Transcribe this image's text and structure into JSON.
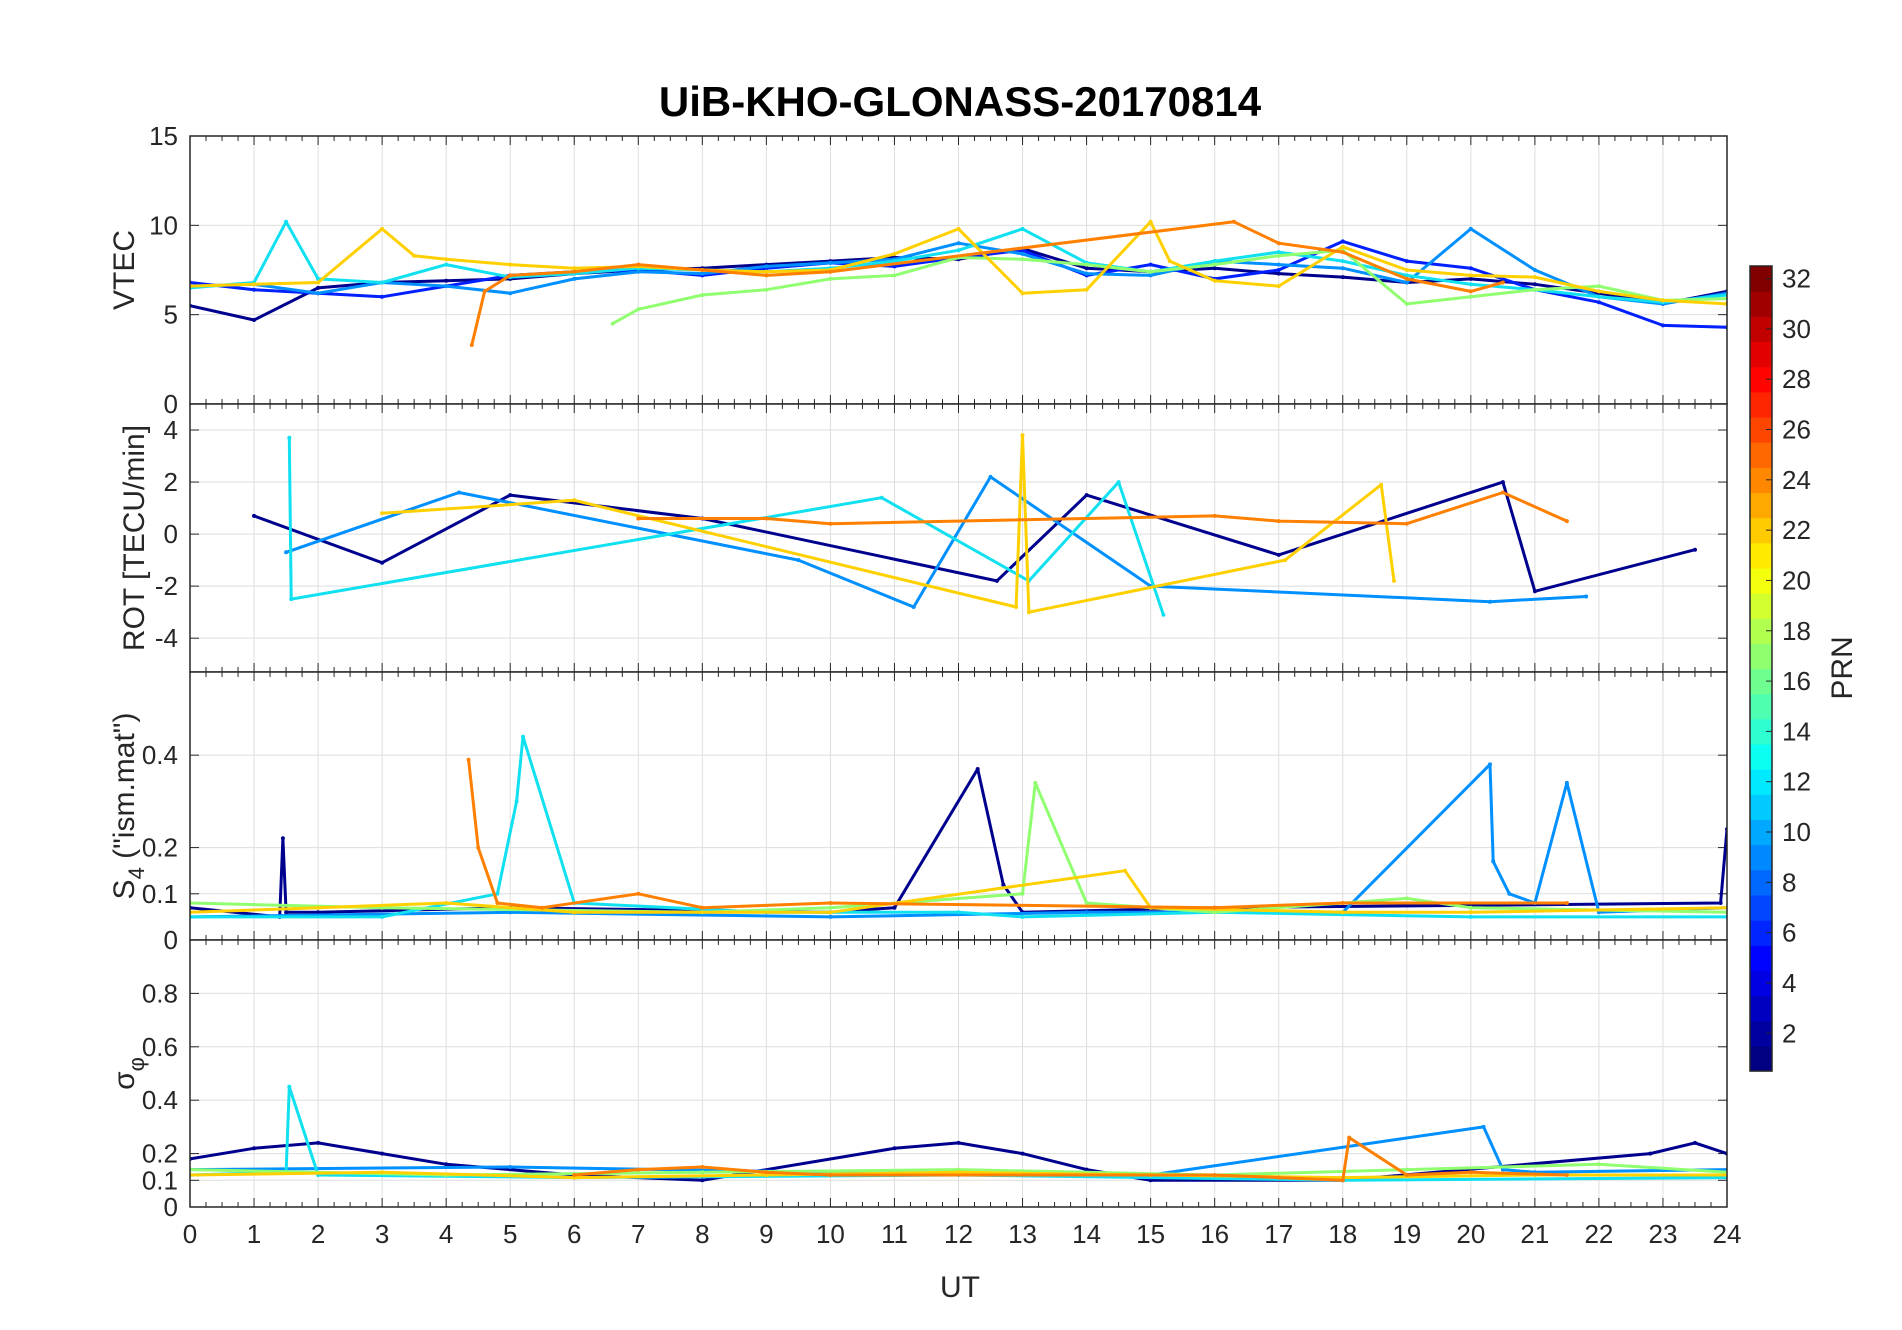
{
  "chart_data": {
    "type": "line",
    "title": "UiB-KHO-GLONASS-20170814",
    "xlabel": "UT",
    "xlim": [
      0,
      24
    ],
    "xticks": [
      "0",
      "1",
      "2",
      "3",
      "4",
      "5",
      "6",
      "7",
      "8",
      "9",
      "10",
      "11",
      "12",
      "13",
      "14",
      "15",
      "16",
      "17",
      "18",
      "19",
      "20",
      "21",
      "22",
      "23",
      "24"
    ],
    "grid": true,
    "panels": [
      {
        "ylabel": "VTEC",
        "ylim": [
          0,
          15
        ],
        "yticks": [
          "0",
          "5",
          "10",
          "15"
        ],
        "series": [
          {
            "color": "#00008f",
            "x": [
              0,
              1,
              2,
              3,
              4,
              5,
              6,
              7,
              8,
              9,
              10,
              11,
              12,
              13,
              14,
              15,
              16,
              17,
              18,
              19,
              20,
              21,
              22,
              23,
              24
            ],
            "y": [
              5.5,
              4.7,
              6.5,
              6.8,
              6.9,
              7.0,
              7.3,
              7.5,
              7.6,
              7.8,
              8.0,
              8.2,
              8.1,
              8.7,
              7.6,
              7.4,
              7.6,
              7.3,
              7.1,
              6.8,
              7.0,
              6.7,
              6.2,
              5.6,
              6.3
            ]
          },
          {
            "color": "#0020ff",
            "x": [
              0,
              1,
              2,
              3,
              4,
              5,
              6,
              7,
              8,
              9,
              10,
              11,
              12,
              13,
              14,
              15,
              16,
              17,
              18,
              19,
              20,
              21,
              22,
              23,
              24
            ],
            "y": [
              6.8,
              6.4,
              6.2,
              6.0,
              6.6,
              7.2,
              7.4,
              7.5,
              7.2,
              7.6,
              7.9,
              7.7,
              8.2,
              8.6,
              7.2,
              7.8,
              7.0,
              7.5,
              9.1,
              8.0,
              7.6,
              6.4,
              5.7,
              4.4,
              4.3
            ]
          },
          {
            "color": "#0090ff",
            "x": [
              0,
              1,
              2,
              3,
              4,
              5,
              6,
              7,
              8,
              9,
              10,
              11,
              12,
              13,
              14,
              15,
              16,
              17,
              18,
              19,
              20,
              21,
              22,
              23,
              24
            ],
            "y": [
              6.6,
              6.7,
              6.2,
              6.8,
              6.6,
              6.2,
              7.0,
              7.4,
              7.3,
              7.7,
              7.9,
              8.1,
              9.0,
              8.4,
              7.3,
              7.2,
              8.0,
              7.8,
              7.6,
              6.8,
              9.8,
              7.5,
              6.0,
              5.6,
              6.2
            ]
          },
          {
            "color": "#10e0f0",
            "x": [
              0,
              1,
              1.5,
              2,
              3,
              4,
              5,
              6,
              7,
              8,
              9,
              10,
              11,
              12,
              13,
              14,
              15,
              16,
              17,
              18,
              19,
              20,
              21,
              22,
              23,
              24
            ],
            "y": [
              6.5,
              6.8,
              10.2,
              7.0,
              6.8,
              7.8,
              7.1,
              7.3,
              7.6,
              7.5,
              7.4,
              7.6,
              8.0,
              8.6,
              9.8,
              7.9,
              7.4,
              8.0,
              8.5,
              8.0,
              7.2,
              6.7,
              6.4,
              6.0,
              5.7,
              6.1
            ]
          },
          {
            "color": "#90ff70",
            "x": [
              6.6,
              7,
              8,
              9,
              10,
              11,
              12,
              13,
              14,
              15,
              16,
              17,
              18,
              19,
              20,
              21,
              22,
              23,
              24
            ],
            "y": [
              4.5,
              5.3,
              6.1,
              6.4,
              7.0,
              7.2,
              8.2,
              8.1,
              7.8,
              7.4,
              7.8,
              8.3,
              8.6,
              5.6,
              6.0,
              6.4,
              6.6,
              5.8,
              5.9
            ]
          },
          {
            "color": "#ffd000",
            "x": [
              0,
              1,
              2,
              3,
              3.5,
              4,
              5,
              6,
              7,
              8,
              9,
              10,
              11,
              12,
              13,
              14,
              15,
              15.3,
              16,
              17,
              18,
              19,
              20,
              21,
              22,
              23,
              24
            ],
            "y": [
              6.6,
              6.7,
              6.8,
              9.8,
              8.3,
              8.1,
              7.8,
              7.6,
              7.7,
              7.5,
              7.4,
              7.5,
              8.4,
              9.8,
              6.2,
              6.4,
              10.2,
              8.0,
              6.9,
              6.6,
              8.8,
              7.5,
              7.2,
              7.1,
              6.3,
              5.8,
              5.6
            ]
          },
          {
            "color": "#ff8000",
            "x": [
              4.4,
              4.6,
              5,
              6,
              7,
              8,
              9,
              10,
              16.3,
              17,
              18,
              19,
              20,
              20.5
            ],
            "y": [
              3.3,
              6.3,
              7.2,
              7.4,
              7.8,
              7.5,
              7.2,
              7.4,
              10.2,
              9.0,
              8.5,
              7.0,
              6.3,
              6.8
            ]
          }
        ]
      },
      {
        "ylabel": "ROT [TECU/min]",
        "ylim": [
          -5.3,
          5
        ],
        "yticks": [
          "-4",
          "-2",
          "0",
          "2",
          "4"
        ],
        "series": [
          {
            "color": "#00008f",
            "x": [
              1,
              3,
              5,
              8,
              12.6,
              14,
              17,
              20.5,
              21,
              23.5
            ],
            "y": [
              0.7,
              -1.1,
              1.5,
              0.6,
              -1.8,
              1.5,
              -0.8,
              2.0,
              -2.2,
              -0.6
            ]
          },
          {
            "color": "#0090ff",
            "x": [
              1.5,
              4.2,
              9.5,
              11.3,
              12.5,
              15,
              20.3,
              21.8
            ],
            "y": [
              -0.7,
              1.6,
              -1.0,
              -2.8,
              2.2,
              -2.0,
              -2.6,
              -2.4
            ]
          },
          {
            "color": "#10e0f0",
            "x": [
              1.55,
              1.58,
              10.8,
              13.1,
              14.5,
              15.2
            ],
            "y": [
              3.7,
              -2.5,
              1.4,
              -1.8,
              2.0,
              -3.1
            ]
          },
          {
            "color": "#ffd000",
            "x": [
              3,
              6,
              12.9,
              13,
              13.1,
              17.1,
              18.6,
              18.8
            ],
            "y": [
              0.8,
              1.3,
              -2.8,
              3.8,
              -3.0,
              -1.0,
              1.9,
              -1.8
            ]
          },
          {
            "color": "#ff8000",
            "x": [
              7,
              9,
              10,
              16,
              17,
              19,
              20.5,
              21.5
            ],
            "y": [
              0.6,
              0.6,
              0.4,
              0.7,
              0.5,
              0.4,
              1.6,
              0.5
            ]
          }
        ]
      },
      {
        "ylabel": "S",
        "ylabel_sub": "4",
        "ylabel_tail": " (\"ism.mat\")",
        "ylim": [
          0,
          0.58
        ],
        "yticks": [
          "0",
          "0.1",
          "0.2",
          "0.4"
        ],
        "series": [
          {
            "color": "#00008f",
            "x": [
              0,
              1.4,
              1.45,
              1.5,
              2,
              5,
              10,
              11,
              12.3,
              12.7,
              13,
              16,
              23.9,
              24
            ],
            "y": [
              0.07,
              0.05,
              0.22,
              0.06,
              0.06,
              0.07,
              0.06,
              0.07,
              0.37,
              0.12,
              0.06,
              0.07,
              0.08,
              0.24
            ]
          },
          {
            "color": "#0090ff",
            "x": [
              0,
              5,
              10,
              14,
              18,
              20.3,
              20.35,
              20.6,
              21,
              21.5,
              22,
              24
            ],
            "y": [
              0.05,
              0.06,
              0.05,
              0.06,
              0.06,
              0.38,
              0.17,
              0.1,
              0.08,
              0.34,
              0.06,
              0.07
            ]
          },
          {
            "color": "#10e0f0",
            "x": [
              0,
              3,
              4.8,
              5.1,
              5.2,
              6,
              9,
              12,
              13,
              16,
              20,
              24
            ],
            "y": [
              0.05,
              0.05,
              0.1,
              0.3,
              0.44,
              0.08,
              0.06,
              0.06,
              0.05,
              0.06,
              0.05,
              0.05
            ]
          },
          {
            "color": "#90ff70",
            "x": [
              0,
              3,
              8,
              10,
              13,
              13.2,
              14,
              16,
              19,
              20,
              24
            ],
            "y": [
              0.08,
              0.07,
              0.06,
              0.07,
              0.1,
              0.34,
              0.08,
              0.06,
              0.09,
              0.07,
              0.06
            ]
          },
          {
            "color": "#ffd000",
            "x": [
              0,
              2,
              4,
              6,
              10,
              14.6,
              15,
              18,
              20,
              24
            ],
            "y": [
              0.06,
              0.07,
              0.08,
              0.06,
              0.06,
              0.15,
              0.07,
              0.06,
              0.06,
              0.07
            ]
          },
          {
            "color": "#ff8000",
            "x": [
              4.35,
              4.5,
              4.8,
              5.5,
              7,
              8,
              10,
              16,
              18,
              21.5
            ],
            "y": [
              0.39,
              0.2,
              0.08,
              0.07,
              0.1,
              0.07,
              0.08,
              0.07,
              0.08,
              0.08
            ]
          }
        ]
      },
      {
        "ylabel": "σ",
        "ylabel_sub": "φ",
        "ylim": [
          0,
          1
        ],
        "yticks": [
          "0",
          "0.1",
          "0.2",
          "0.4",
          "0.6",
          "0.8"
        ],
        "series": [
          {
            "color": "#00008f",
            "x": [
              0,
              1,
              2,
              3,
              4,
              6,
              8,
              11,
              12,
              13,
              14,
              15,
              18,
              22.8,
              23.5,
              24
            ],
            "y": [
              0.18,
              0.22,
              0.24,
              0.2,
              0.16,
              0.12,
              0.1,
              0.22,
              0.24,
              0.2,
              0.14,
              0.1,
              0.1,
              0.2,
              0.24,
              0.2
            ]
          },
          {
            "color": "#0090ff",
            "x": [
              0,
              5,
              10,
              15,
              20.2,
              20.5,
              21,
              24
            ],
            "y": [
              0.14,
              0.15,
              0.13,
              0.12,
              0.3,
              0.14,
              0.13,
              0.14
            ]
          },
          {
            "color": "#10e0f0",
            "x": [
              0,
              1.5,
              1.55,
              2,
              6,
              12,
              18,
              24
            ],
            "y": [
              0.12,
              0.13,
              0.45,
              0.12,
              0.11,
              0.12,
              0.1,
              0.11
            ]
          },
          {
            "color": "#90ff70",
            "x": [
              0,
              4,
              8,
              12,
              16,
              19,
              22,
              24
            ],
            "y": [
              0.14,
              0.12,
              0.13,
              0.14,
              0.12,
              0.14,
              0.16,
              0.13
            ]
          },
          {
            "color": "#ffd000",
            "x": [
              0,
              3,
              6,
              9,
              12,
              15,
              18,
              21,
              24
            ],
            "y": [
              0.12,
              0.13,
              0.11,
              0.12,
              0.13,
              0.12,
              0.11,
              0.12,
              0.12
            ]
          },
          {
            "color": "#ff8000",
            "x": [
              6,
              7,
              8,
              9,
              10,
              16,
              17,
              18,
              18.1,
              19,
              20,
              21.5
            ],
            "y": [
              0.12,
              0.14,
              0.15,
              0.13,
              0.12,
              0.12,
              0.11,
              0.1,
              0.26,
              0.12,
              0.13,
              0.12
            ]
          }
        ]
      }
    ],
    "colorbar": {
      "label": "PRN",
      "range": [
        1,
        32
      ],
      "ticks": [
        "2",
        "4",
        "6",
        "8",
        "10",
        "12",
        "14",
        "16",
        "18",
        "20",
        "22",
        "24",
        "26",
        "28",
        "30",
        "32"
      ],
      "colormap": "jet"
    }
  }
}
